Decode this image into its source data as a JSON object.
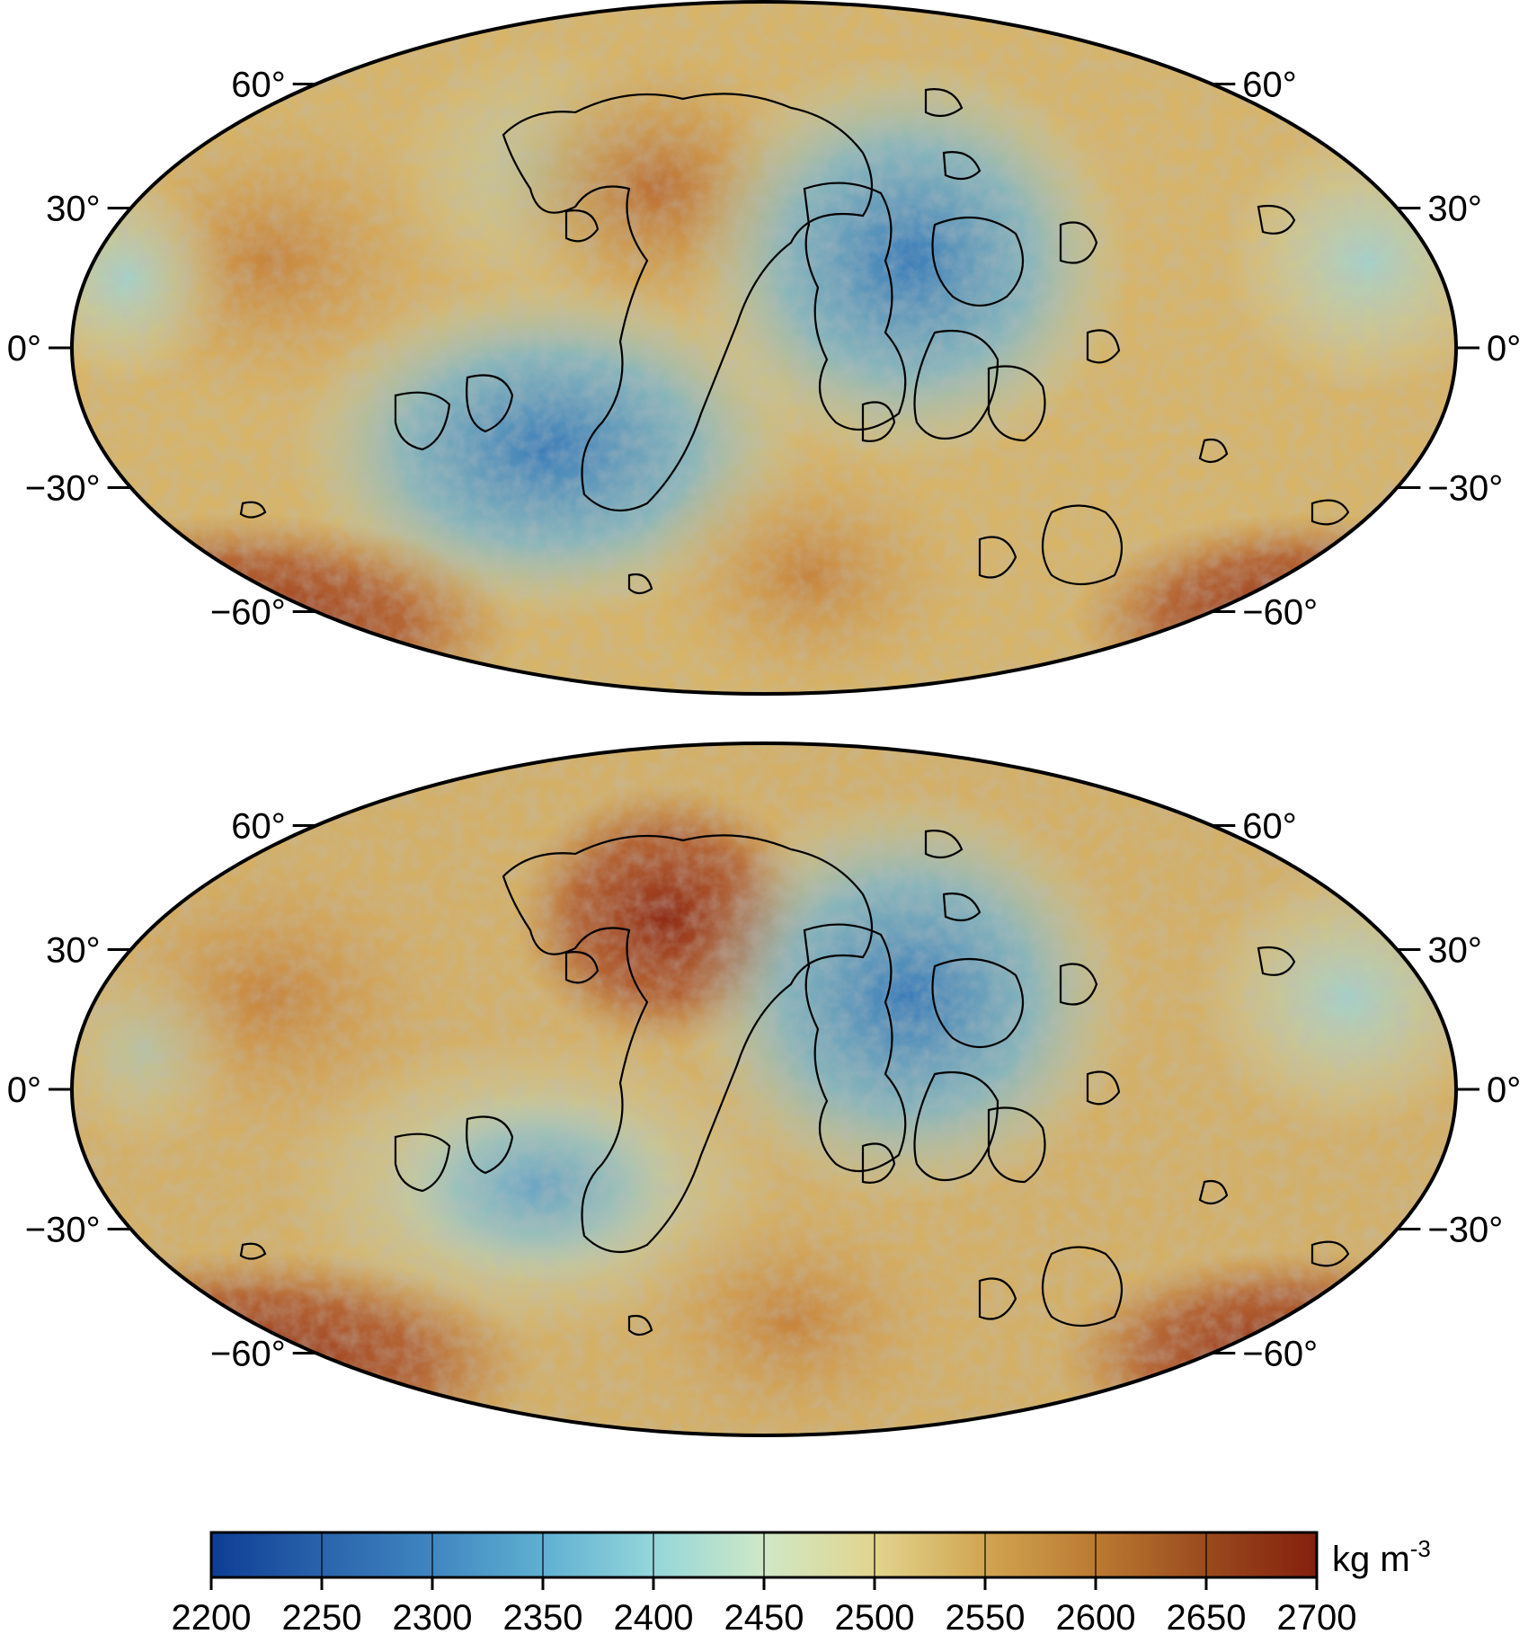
{
  "maps": [
    {
      "id": "top",
      "lat_labels": [
        {
          "lat": 60,
          "left": "60°",
          "right": "60°"
        },
        {
          "lat": 30,
          "left": "30°",
          "right": "30°"
        },
        {
          "lat": 0,
          "left": "0°",
          "right": "0°"
        },
        {
          "lat": -30,
          "left": "−30°",
          "right": "−30°"
        },
        {
          "lat": -60,
          "left": "−60°",
          "right": "−60°"
        }
      ]
    },
    {
      "id": "bottom",
      "lat_labels": [
        {
          "lat": 60,
          "left": "60°",
          "right": "60°"
        },
        {
          "lat": 30,
          "left": "30°",
          "right": "30°"
        },
        {
          "lat": 0,
          "left": "0°",
          "right": "0°"
        },
        {
          "lat": -30,
          "left": "−30°",
          "right": "−30°"
        },
        {
          "lat": -60,
          "left": "−60°",
          "right": "−60°"
        }
      ]
    }
  ],
  "colorbar": {
    "unit_main": "kg m",
    "unit_sup": "-3",
    "min": 2200,
    "max": 2700,
    "ticks": [
      "2200",
      "2250",
      "2300",
      "2350",
      "2400",
      "2450",
      "2500",
      "2550",
      "2600",
      "2650",
      "2700"
    ],
    "colors": [
      "#0d3d94",
      "#2f6fb3",
      "#4f9ccb",
      "#86cfd8",
      "#c6e8cf",
      "#e3dd98",
      "#d7b45c",
      "#c68a36",
      "#a65a24",
      "#8a2b12"
    ]
  },
  "palette": {
    "low": "#3e86c6",
    "mid_low": "#8fd0d8",
    "mid": "#e2d89a",
    "mid_high": "#cda35a",
    "high": "#a04a22",
    "very_high": "#8a2410",
    "outline": "#000000"
  }
}
